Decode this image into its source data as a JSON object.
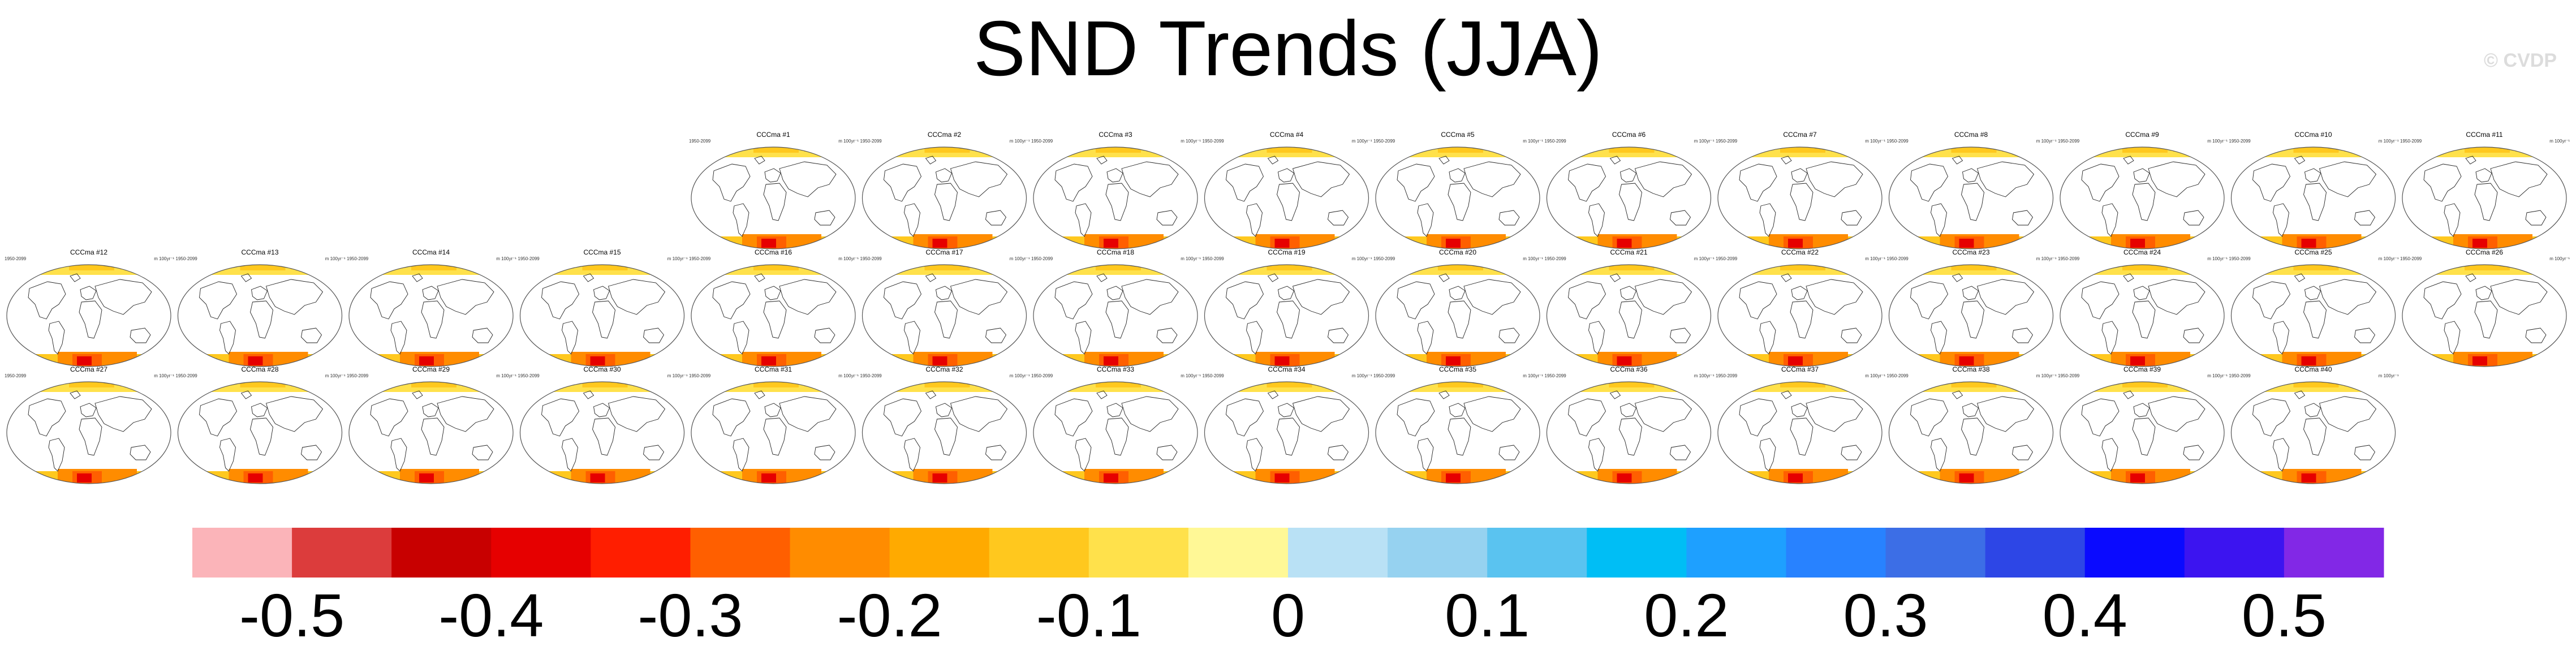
{
  "title": "SND Trends (JJA)",
  "watermark": "© CVDP",
  "chart_data": {
    "type": "map-panel-grid",
    "variable": "SND",
    "season": "JJA",
    "panel_left_label": "1950-2099",
    "panel_right_label": "m 100yr⁻¹",
    "panels": [
      {
        "title": "CCCma #1",
        "row": 0,
        "col": 4
      },
      {
        "title": "CCCma #2",
        "row": 0,
        "col": 5
      },
      {
        "title": "CCCma #3",
        "row": 0,
        "col": 6
      },
      {
        "title": "CCCma #4",
        "row": 0,
        "col": 7
      },
      {
        "title": "CCCma #5",
        "row": 0,
        "col": 8
      },
      {
        "title": "CCCma #6",
        "row": 0,
        "col": 9
      },
      {
        "title": "CCCma #7",
        "row": 0,
        "col": 10
      },
      {
        "title": "CCCma #8",
        "row": 0,
        "col": 11
      },
      {
        "title": "CCCma #9",
        "row": 0,
        "col": 12
      },
      {
        "title": "CCCma #10",
        "row": 0,
        "col": 13
      },
      {
        "title": "CCCma #11",
        "row": 0,
        "col": 14
      },
      {
        "title": "CCCma #12",
        "row": 1,
        "col": 0
      },
      {
        "title": "CCCma #13",
        "row": 1,
        "col": 1
      },
      {
        "title": "CCCma #14",
        "row": 1,
        "col": 2
      },
      {
        "title": "CCCma #15",
        "row": 1,
        "col": 3
      },
      {
        "title": "CCCma #16",
        "row": 1,
        "col": 4
      },
      {
        "title": "CCCma #17",
        "row": 1,
        "col": 5
      },
      {
        "title": "CCCma #18",
        "row": 1,
        "col": 6
      },
      {
        "title": "CCCma #19",
        "row": 1,
        "col": 7
      },
      {
        "title": "CCCma #20",
        "row": 1,
        "col": 8
      },
      {
        "title": "CCCma #21",
        "row": 1,
        "col": 9
      },
      {
        "title": "CCCma #22",
        "row": 1,
        "col": 10
      },
      {
        "title": "CCCma #23",
        "row": 1,
        "col": 11
      },
      {
        "title": "CCCma #24",
        "row": 1,
        "col": 12
      },
      {
        "title": "CCCma #25",
        "row": 1,
        "col": 13
      },
      {
        "title": "CCCma #26",
        "row": 1,
        "col": 14
      },
      {
        "title": "CCCma #27",
        "row": 2,
        "col": 0
      },
      {
        "title": "CCCma #28",
        "row": 2,
        "col": 1
      },
      {
        "title": "CCCma #29",
        "row": 2,
        "col": 2
      },
      {
        "title": "CCCma #30",
        "row": 2,
        "col": 3
      },
      {
        "title": "CCCma #31",
        "row": 2,
        "col": 4
      },
      {
        "title": "CCCma #32",
        "row": 2,
        "col": 5
      },
      {
        "title": "CCCma #33",
        "row": 2,
        "col": 6
      },
      {
        "title": "CCCma #34",
        "row": 2,
        "col": 7
      },
      {
        "title": "CCCma #35",
        "row": 2,
        "col": 8
      },
      {
        "title": "CCCma #36",
        "row": 2,
        "col": 9
      },
      {
        "title": "CCCma #37",
        "row": 2,
        "col": 10
      },
      {
        "title": "CCCma #38",
        "row": 2,
        "col": 11
      },
      {
        "title": "CCCma #39",
        "row": 2,
        "col": 12
      },
      {
        "title": "CCCma #40",
        "row": 2,
        "col": 13
      }
    ],
    "colorbar": {
      "colors": [
        "#fbb4b9",
        "#dc3c3c",
        "#c80000",
        "#e60000",
        "#ff1e00",
        "#ff5f00",
        "#ff8c00",
        "#ffaa00",
        "#ffc81e",
        "#ffe14b",
        "#fff896",
        "#b9e1f5",
        "#96d2f0",
        "#5ac3f0",
        "#00bef5",
        "#1ea0ff",
        "#2882ff",
        "#3c6ee6",
        "#2d46e6",
        "#0a0aff",
        "#3c14f0",
        "#8228e6"
      ],
      "tick_labels": [
        "-0.5",
        "-0.4",
        "-0.3",
        "-0.2",
        "-0.1",
        "0",
        "0.1",
        "0.2",
        "0.3",
        "0.4",
        "0.5"
      ]
    }
  }
}
